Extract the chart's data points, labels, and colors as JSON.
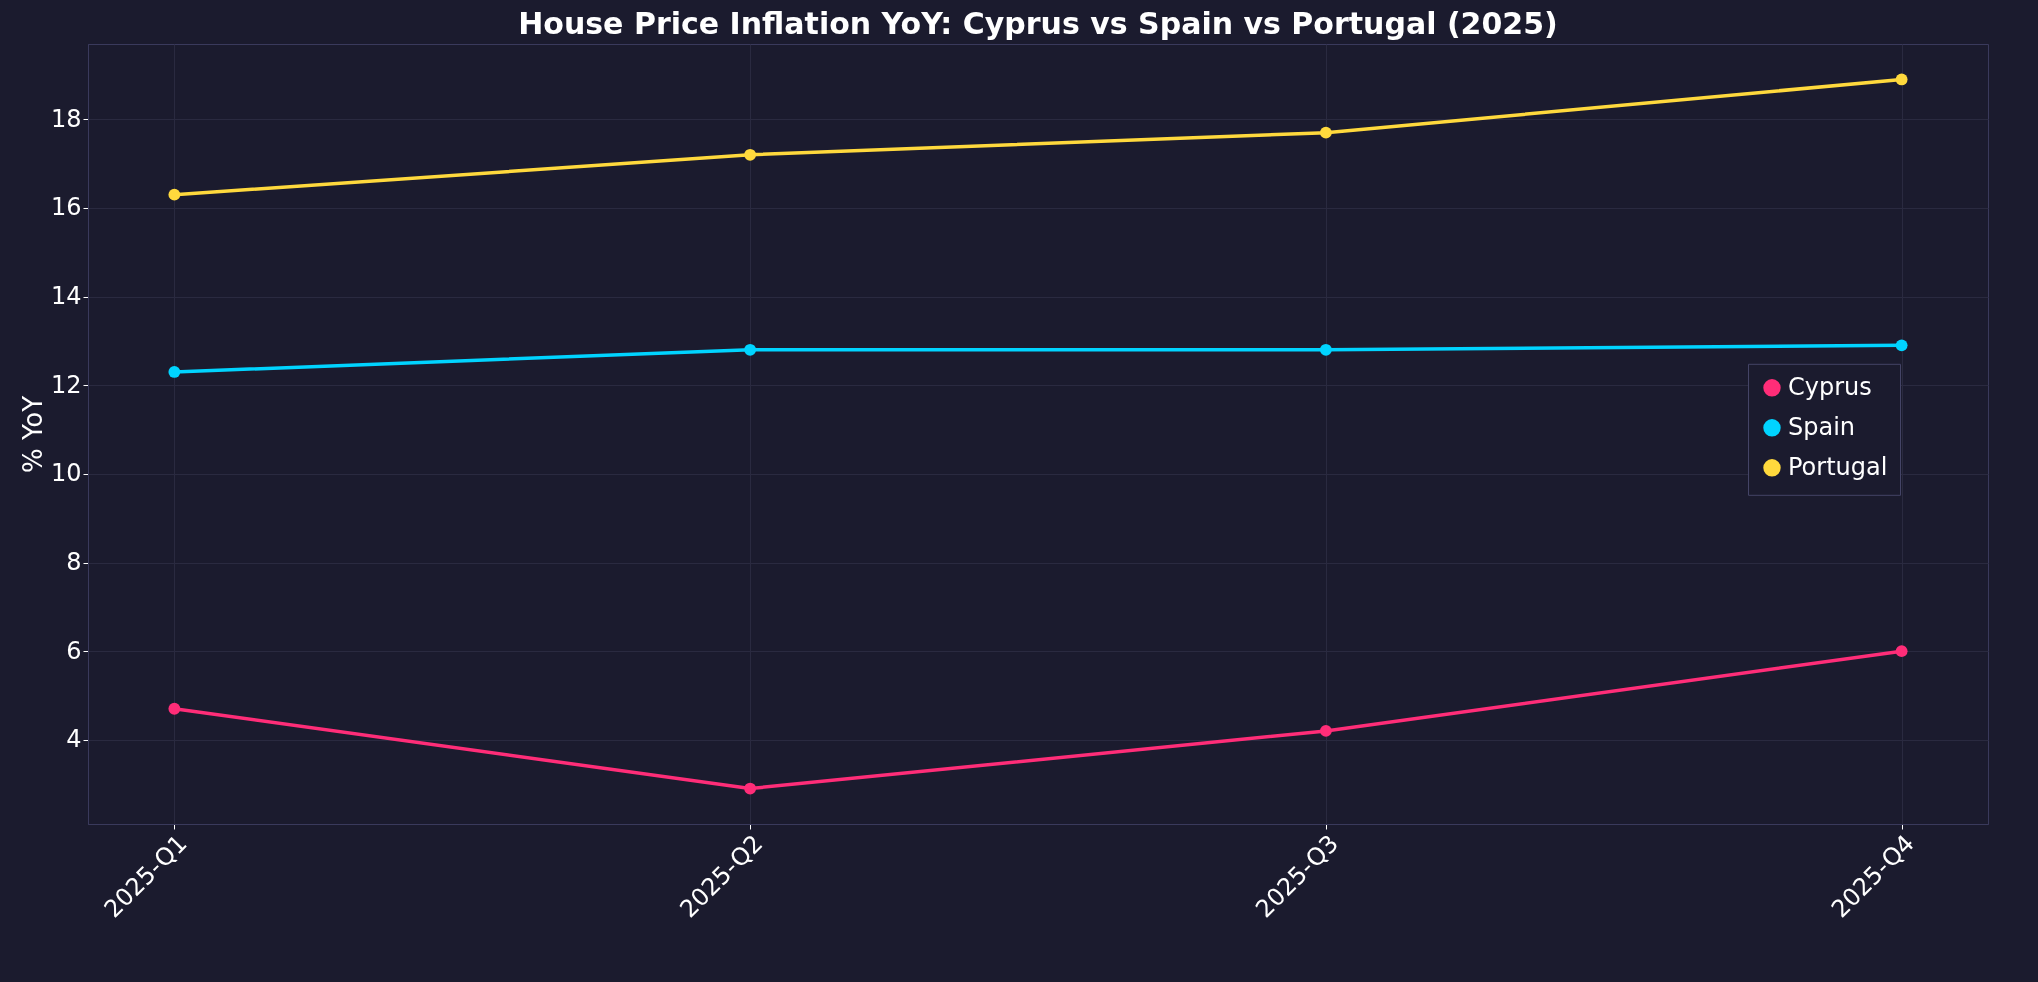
{
  "chart_data": {
    "type": "line",
    "title": "House Price Inflation YoY: Cyprus vs Spain vs Portugal (2025)",
    "ylabel": "% YoY",
    "categories": [
      "2025-Q1",
      "2025-Q2",
      "2025-Q3",
      "2025-Q4"
    ],
    "series": [
      {
        "name": "Cyprus",
        "color": "#ff2d78",
        "values": [
          4.7,
          2.9,
          4.2,
          6.0
        ]
      },
      {
        "name": "Spain",
        "color": "#00d4ff",
        "values": [
          12.3,
          12.8,
          12.8,
          12.9
        ]
      },
      {
        "name": "Portugal",
        "color": "#ffd93d",
        "values": [
          16.3,
          17.2,
          17.7,
          18.9
        ]
      }
    ],
    "ylim": [
      2.1,
      19.7
    ],
    "yticks": [
      4,
      6,
      8,
      10,
      12,
      14,
      16,
      18
    ],
    "grid": true,
    "legend": "right",
    "marker": "circle",
    "line_style": "solid"
  }
}
